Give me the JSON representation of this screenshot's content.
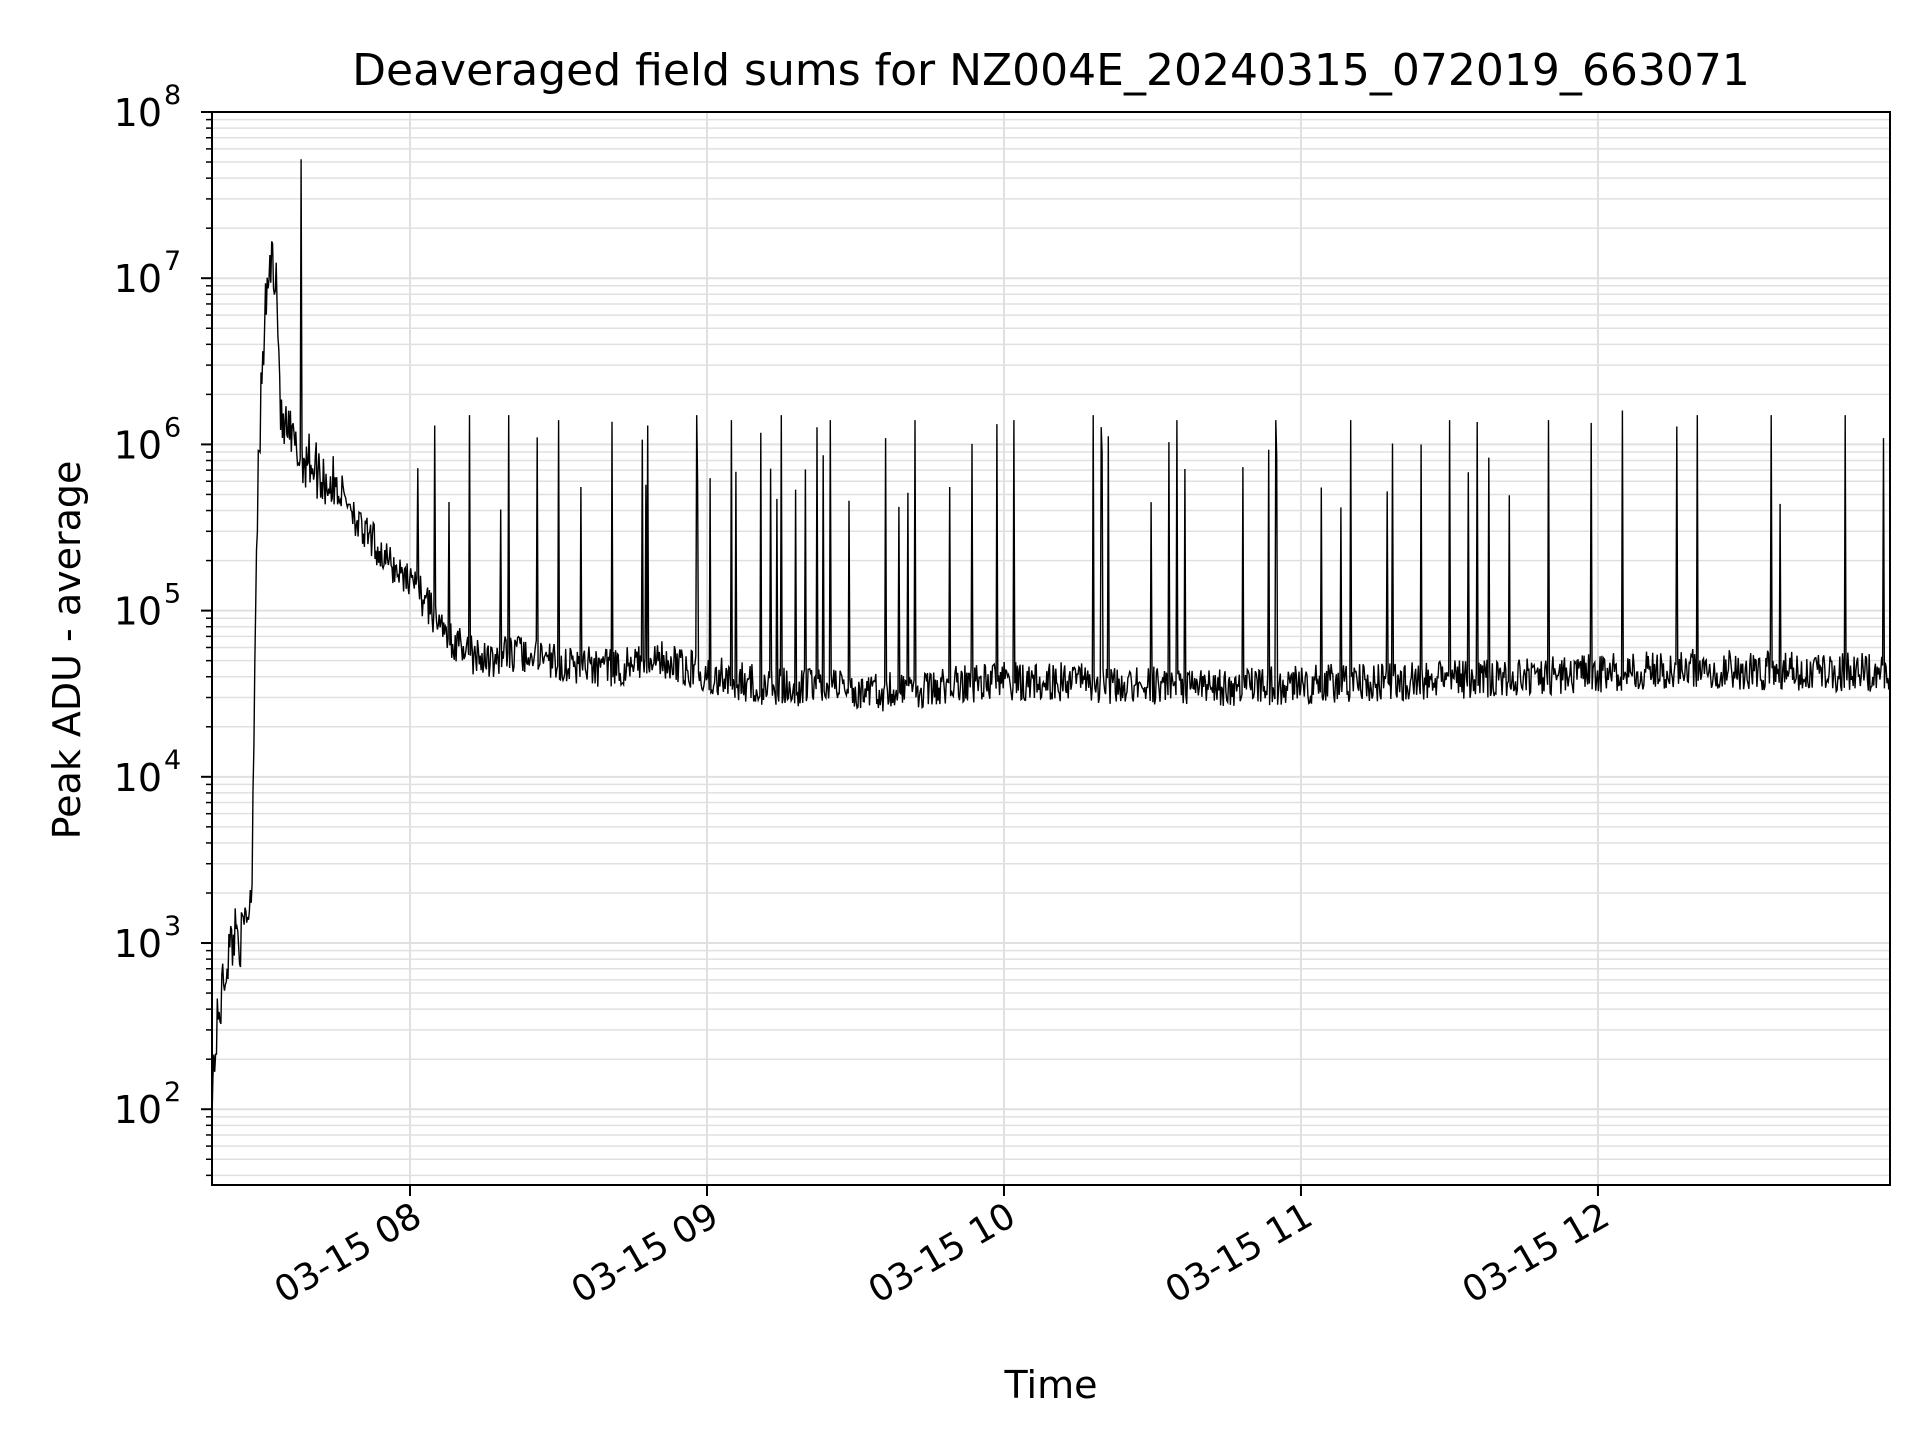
{
  "chart_data": {
    "type": "line",
    "title": "Deaveraged field sums for NZ004E_20240315_072019_663071",
    "xlabel": "Time",
    "ylabel": "Peak ADU - average",
    "yscale": "log",
    "ylim": [
      35,
      100000000
    ],
    "xlim": [
      "2024-03-15 07:20",
      "2024-03-15 12:59"
    ],
    "grid": true,
    "legend": "none",
    "line_color": "#000000",
    "grid_color": "#e0e0e0",
    "x_ticks": [
      {
        "label": "03-15 08",
        "value": "2024-03-15 08:00"
      },
      {
        "label": "03-15 09",
        "value": "2024-03-15 09:00"
      },
      {
        "label": "03-15 10",
        "value": "2024-03-15 10:00"
      },
      {
        "label": "03-15 11",
        "value": "2024-03-15 11:00"
      },
      {
        "label": "03-15 12",
        "value": "2024-03-15 12:00"
      }
    ],
    "y_ticks": [
      {
        "base": "10",
        "exp": "2",
        "value": 100
      },
      {
        "base": "10",
        "exp": "3",
        "value": 1000
      },
      {
        "base": "10",
        "exp": "4",
        "value": 10000
      },
      {
        "base": "10",
        "exp": "5",
        "value": 100000
      },
      {
        "base": "10",
        "exp": "6",
        "value": 1000000
      },
      {
        "base": "10",
        "exp": "7",
        "value": 10000000
      },
      {
        "base": "10",
        "exp": "8",
        "value": 100000000
      }
    ],
    "series": [
      {
        "x": [
          "2024-03-15 07:20",
          "2024-03-15 07:21",
          "2024-03-15 07:22",
          "2024-03-15 07:23",
          "2024-03-15 07:24",
          "2024-03-15 07:25",
          "2024-03-15 07:26",
          "2024-03-15 07:27",
          "2024-03-15 07:28",
          "2024-03-15 07:29",
          "2024-03-15 07:30",
          "2024-03-15 07:31",
          "2024-03-15 07:32",
          "2024-03-15 07:33",
          "2024-03-15 07:34",
          "2024-03-15 07:35",
          "2024-03-15 07:36",
          "2024-03-15 07:37",
          "2024-03-15 07:38",
          "2024-03-15 07:40",
          "2024-03-15 07:42",
          "2024-03-15 07:45",
          "2024-03-15 07:48",
          "2024-03-15 07:50",
          "2024-03-15 07:53",
          "2024-03-15 07:55",
          "2024-03-15 07:58",
          "2024-03-15 08:00",
          "2024-03-15 08:05",
          "2024-03-15 08:10",
          "2024-03-15 08:15",
          "2024-03-15 08:20",
          "2024-03-15 08:30",
          "2024-03-15 08:40",
          "2024-03-15 08:50",
          "2024-03-15 09:00",
          "2024-03-15 09:10",
          "2024-03-15 09:20",
          "2024-03-15 09:30",
          "2024-03-15 09:40",
          "2024-03-15 09:50",
          "2024-03-15 10:00",
          "2024-03-15 10:15",
          "2024-03-15 10:30",
          "2024-03-15 10:45",
          "2024-03-15 11:00",
          "2024-03-15 11:15",
          "2024-03-15 11:30",
          "2024-03-15 11:45",
          "2024-03-15 12:00",
          "2024-03-15 12:15",
          "2024-03-15 12:30",
          "2024-03-15 12:45",
          "2024-03-15 12:59"
        ],
        "y": [
          130,
          300,
          500,
          800,
          1000,
          1300,
          1000,
          1500,
          2000,
          300000,
          2200000,
          8000000,
          13000000,
          11000000,
          1250000,
          1200000,
          1050000,
          900000,
          850000,
          800000,
          650000,
          550000,
          450000,
          300000,
          250000,
          200000,
          170000,
          160000,
          90000,
          60000,
          50000,
          55000,
          48000,
          45000,
          52000,
          42000,
          36000,
          34000,
          33000,
          32000,
          36000,
          38000,
          37000,
          35000,
          34000,
          36000,
          37000,
          38000,
          40000,
          42000,
          45000,
          44000,
          43000,
          42000
        ],
        "spikes": {
          "2024-03-15 07:38": 52000000,
          "2024-03-15 08:05": 1300000,
          "2024-03-15 08:12": 1500000,
          "2024-03-15 08:20": 1500000,
          "2024-03-15 08:30": 1400000,
          "2024-03-15 08:48": 1300000,
          "2024-03-15 08:58": 1500000,
          "2024-03-15 09:05": 1400000,
          "2024-03-15 09:15": 1500000,
          "2024-03-15 09:25": 1400000,
          "2024-03-15 09:42": 1400000,
          "2024-03-15 10:02": 1400000,
          "2024-03-15 10:18": 1500000,
          "2024-03-15 10:35": 1400000,
          "2024-03-15 10:55": 1400000,
          "2024-03-15 11:10": 1400000,
          "2024-03-15 11:30": 1400000,
          "2024-03-15 11:50": 1400000,
          "2024-03-15 12:05": 1600000,
          "2024-03-15 12:20": 1500000,
          "2024-03-15 12:35": 1500000,
          "2024-03-15 12:50": 1500000
        }
      }
    ]
  }
}
